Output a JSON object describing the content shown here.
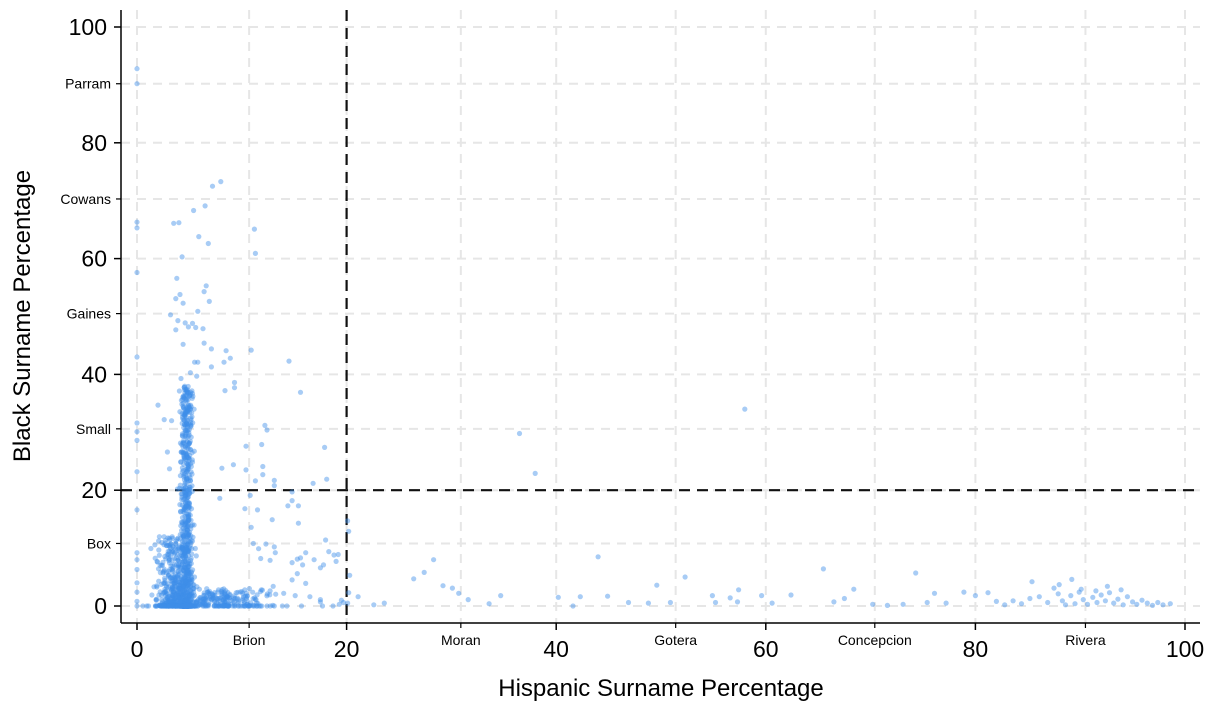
{
  "chart_data": {
    "type": "scatter",
    "title": "",
    "xlabel": "Hispanic Surname Percentage",
    "ylabel": "Black Surname Percentage",
    "xlim": [
      -2,
      102
    ],
    "ylim": [
      -3,
      104
    ],
    "x_ticks_major": [
      "0",
      "20",
      "40",
      "60",
      "80",
      "100"
    ],
    "x_ticks_major_values": [
      0,
      20,
      40,
      60,
      80,
      100
    ],
    "x_ticks_names": [
      {
        "label": "Brion",
        "value": 10.7
      },
      {
        "label": "Moran",
        "value": 30.9
      },
      {
        "label": "Gotera",
        "value": 51.4
      },
      {
        "label": "Concepcion",
        "value": 70.4
      },
      {
        "label": "Rivera",
        "value": 90.5
      }
    ],
    "y_ticks_major": [
      "0",
      "20",
      "40",
      "60",
      "80",
      "100"
    ],
    "y_ticks_major_values": [
      0,
      20,
      40,
      60,
      80,
      100
    ],
    "y_ticks_names": [
      {
        "label": "Box",
        "value": 10.8
      },
      {
        "label": "Small",
        "value": 30.6
      },
      {
        "label": "Gaines",
        "value": 50.5
      },
      {
        "label": "Cowans",
        "value": 70.3
      },
      {
        "label": "Parram",
        "value": 90.2
      }
    ],
    "reference_lines": {
      "x": 20,
      "y": 20
    },
    "grid": true,
    "point_color": "#3d8fe8",
    "point_opacity": 0.45,
    "points": [
      [
        0,
        92.8
      ],
      [
        0,
        90.2
      ],
      [
        0,
        66.3
      ],
      [
        0,
        65.3
      ],
      [
        0,
        57.6
      ],
      [
        0,
        43
      ],
      [
        0,
        31.6
      ],
      [
        0,
        30.1
      ],
      [
        0,
        28.6
      ],
      [
        0,
        23.2
      ],
      [
        0,
        16.6
      ],
      [
        0,
        9.2
      ],
      [
        0,
        8
      ],
      [
        0,
        6.3
      ],
      [
        0,
        4
      ],
      [
        0,
        2.4
      ],
      [
        0,
        0.8
      ],
      [
        0,
        0
      ],
      [
        2,
        34.7
      ],
      [
        2.6,
        32.2
      ],
      [
        3.3,
        32
      ],
      [
        2.9,
        26.6
      ],
      [
        3.1,
        23.7
      ],
      [
        3.5,
        66.1
      ],
      [
        4,
        66.2
      ],
      [
        4.3,
        60.3
      ],
      [
        5.4,
        68.3
      ],
      [
        6.5,
        69.1
      ],
      [
        5.9,
        63.8
      ],
      [
        6.8,
        62.6
      ],
      [
        3.8,
        56.6
      ],
      [
        4.1,
        53.8
      ],
      [
        4.4,
        52.3
      ],
      [
        3.7,
        53.1
      ],
      [
        3.9,
        49.3
      ],
      [
        4.6,
        48.9
      ],
      [
        5.3,
        48.8
      ],
      [
        5.8,
        50.9
      ],
      [
        6.6,
        55.3
      ],
      [
        3.7,
        47.7
      ],
      [
        3.2,
        50.3
      ],
      [
        4.9,
        48.2
      ],
      [
        5.5,
        42.1
      ],
      [
        6.4,
        54.3
      ],
      [
        5.6,
        48.1
      ],
      [
        6.3,
        47.9
      ],
      [
        4.4,
        45.2
      ],
      [
        6.9,
        52.6
      ],
      [
        7.2,
        72.5
      ],
      [
        8,
        73.3
      ],
      [
        6.4,
        45.4
      ],
      [
        7.1,
        44.4
      ],
      [
        5.8,
        42.1
      ],
      [
        5.7,
        39.7
      ],
      [
        4.2,
        39.3
      ],
      [
        5.1,
        40.3
      ],
      [
        7.1,
        41.3
      ],
      [
        11.2,
        65.1
      ],
      [
        11.3,
        60.9
      ],
      [
        8.5,
        44.1
      ],
      [
        8.9,
        42.8
      ],
      [
        10.9,
        44.2
      ],
      [
        8.3,
        42.1
      ],
      [
        14.5,
        42.3
      ],
      [
        9.3,
        38.6
      ],
      [
        9.3,
        37.7
      ],
      [
        8.4,
        37.2
      ],
      [
        12.2,
        31.2
      ],
      [
        10.4,
        27.6
      ],
      [
        11.9,
        27.9
      ],
      [
        12.4,
        30.4
      ],
      [
        12,
        22.7
      ],
      [
        13.1,
        21.7
      ],
      [
        13.1,
        20.8
      ],
      [
        14.8,
        18.2
      ],
      [
        15.4,
        14.3
      ],
      [
        14.4,
        17.3
      ],
      [
        15.4,
        17.3
      ],
      [
        12,
        24.1
      ],
      [
        14.8,
        19.7
      ],
      [
        17.9,
        27.4
      ],
      [
        16.8,
        21.2
      ],
      [
        15.6,
        36.9
      ],
      [
        18.1,
        21.9
      ],
      [
        10.4,
        23.5
      ],
      [
        11.3,
        21.6
      ],
      [
        9.2,
        24.4
      ],
      [
        8.1,
        23.8
      ],
      [
        7.9,
        18.6
      ],
      [
        10.8,
        19.1
      ],
      [
        10.9,
        13.6
      ],
      [
        11.5,
        16.6
      ],
      [
        10.3,
        16.8
      ],
      [
        11.1,
        10.8
      ],
      [
        12.9,
        14.9
      ],
      [
        13.1,
        10.2
      ],
      [
        12.3,
        10.7
      ],
      [
        11.6,
        9.9
      ],
      [
        13.2,
        9.2
      ],
      [
        11.8,
        8.2
      ],
      [
        12.7,
        7.9
      ],
      [
        15.6,
        8.3
      ],
      [
        16.1,
        9.2
      ],
      [
        14.8,
        7.5
      ],
      [
        18,
        11.4
      ],
      [
        18.8,
        8.8
      ],
      [
        15.3,
        8.1
      ],
      [
        15.8,
        7.1
      ],
      [
        16.9,
        8
      ],
      [
        17.5,
        6.6
      ],
      [
        19.2,
        8.9
      ],
      [
        18.3,
        9.4
      ],
      [
        19,
        7.7
      ],
      [
        17.8,
        7.1
      ],
      [
        16.1,
        3.9
      ],
      [
        15.3,
        5.6
      ],
      [
        14.8,
        4.5
      ],
      [
        13,
        3.4
      ],
      [
        12.7,
        2.6
      ],
      [
        14,
        2.2
      ],
      [
        15.1,
        1.8
      ],
      [
        16.5,
        1.6
      ],
      [
        17.5,
        1.1
      ],
      [
        19.5,
        1
      ],
      [
        17.5,
        0.7
      ],
      [
        19.7,
        0.6
      ],
      [
        19.3,
        0.3
      ],
      [
        18.7,
        0
      ],
      [
        17.7,
        0
      ],
      [
        15.7,
        0
      ],
      [
        14.3,
        0
      ],
      [
        13.1,
        0
      ],
      [
        12.4,
        0
      ],
      [
        20.2,
        12.9
      ],
      [
        20.1,
        14.7
      ],
      [
        20.3,
        5.3
      ],
      [
        20.2,
        2.3
      ],
      [
        20.1,
        0.5
      ],
      [
        21.1,
        1.6
      ],
      [
        22.6,
        0.2
      ],
      [
        23.6,
        0.5
      ],
      [
        27.4,
        5.8
      ],
      [
        26.4,
        4.7
      ],
      [
        28.3,
        8
      ],
      [
        30.1,
        3.1
      ],
      [
        30.7,
        2.2
      ],
      [
        31.6,
        1.1
      ],
      [
        33.6,
        0.4
      ],
      [
        34.7,
        1.8
      ],
      [
        29.2,
        3.5
      ],
      [
        36.5,
        29.8
      ],
      [
        38,
        22.9
      ],
      [
        40.2,
        1.5
      ],
      [
        41.6,
        0
      ],
      [
        42.3,
        1.6
      ],
      [
        44,
        8.5
      ],
      [
        44.9,
        1.7
      ],
      [
        46.9,
        0.6
      ],
      [
        48.8,
        0.5
      ],
      [
        49.6,
        3.6
      ],
      [
        50.9,
        0.6
      ],
      [
        52.3,
        5
      ],
      [
        54.9,
        1.8
      ],
      [
        55.2,
        0.6
      ],
      [
        56.6,
        1.4
      ],
      [
        57.3,
        0.7
      ],
      [
        57.4,
        2.8
      ],
      [
        59.6,
        1.8
      ],
      [
        60.6,
        0.5
      ],
      [
        58,
        34
      ],
      [
        62.4,
        1.9
      ],
      [
        65.5,
        6.4
      ],
      [
        66.5,
        0.7
      ],
      [
        67.5,
        1.3
      ],
      [
        68.4,
        2.9
      ],
      [
        70.2,
        0.3
      ],
      [
        71.6,
        0.1
      ],
      [
        73.1,
        0.3
      ],
      [
        74.3,
        5.7
      ],
      [
        75.4,
        0.6
      ],
      [
        76.1,
        2.2
      ],
      [
        77.2,
        0.5
      ],
      [
        78.9,
        2.4
      ],
      [
        80,
        1.8
      ],
      [
        81.2,
        2.3
      ],
      [
        82,
        0.8
      ],
      [
        82.8,
        0.2
      ],
      [
        83.6,
        0.9
      ],
      [
        84.4,
        0.4
      ],
      [
        85.2,
        1.3
      ],
      [
        85.4,
        4.2
      ],
      [
        86.1,
        1.6
      ],
      [
        86.9,
        0.6
      ],
      [
        87.5,
        3.1
      ],
      [
        87.9,
        2.1
      ],
      [
        88.3,
        0.9
      ],
      [
        88.6,
        0.2
      ],
      [
        89.1,
        1.8
      ],
      [
        89.5,
        0.4
      ],
      [
        89.9,
        2.4
      ],
      [
        90.3,
        1.1
      ],
      [
        90.7,
        0.3
      ],
      [
        91.2,
        1.5
      ],
      [
        91.6,
        0.6
      ],
      [
        92,
        1.9
      ],
      [
        92.4,
        0.9
      ],
      [
        92.8,
        2.3
      ],
      [
        93.2,
        0.5
      ],
      [
        93.6,
        1.2
      ],
      [
        94.1,
        0.2
      ],
      [
        94.5,
        1.6
      ],
      [
        95,
        0.7
      ],
      [
        95.4,
        0.3
      ],
      [
        95.9,
        1
      ],
      [
        96.4,
        0.5
      ],
      [
        96.9,
        0.1
      ],
      [
        97.4,
        0.6
      ],
      [
        97.9,
        0.2
      ],
      [
        98.6,
        0.4
      ],
      [
        89.2,
        4.6
      ],
      [
        88,
        3.7
      ],
      [
        90.1,
        2.9
      ],
      [
        91.5,
        2.6
      ],
      [
        92.6,
        3.4
      ],
      [
        93.9,
        2.8
      ]
    ],
    "column_clusters": [
      {
        "x_center": 4.7,
        "x_spread": 0.55,
        "count": 520,
        "y_max": 38,
        "y_skew": 1.15
      },
      {
        "x_center": 3.6,
        "x_spread": 1.8,
        "count": 380,
        "y_max": 12,
        "y_skew": 1.8
      },
      {
        "x_center": 8.0,
        "x_spread": 4.5,
        "count": 200,
        "y_max": 3,
        "y_skew": 1.4
      }
    ]
  }
}
